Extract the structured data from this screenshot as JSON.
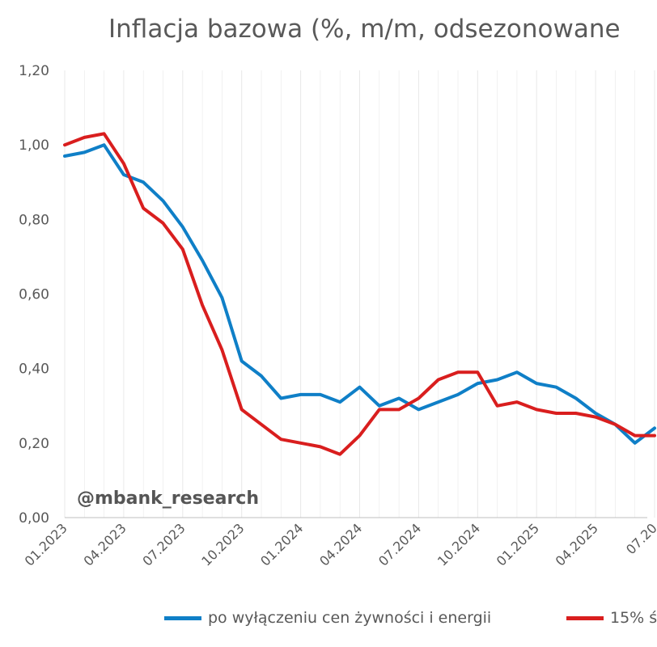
{
  "title": "Inflacja bazowa (%, m/m, odsezonowane",
  "watermark": "@mbank_research",
  "colors": {
    "series1": "#0f7fc7",
    "series2": "#d91e1e",
    "grid": "#e8e8e8",
    "text": "#595959"
  },
  "chart_data": {
    "type": "line",
    "title": "Inflacja bazowa (%, m/m, odsezonowane",
    "ylim": [
      0,
      1.2
    ],
    "yticks": [
      "0,00",
      "0,20",
      "0,40",
      "0,60",
      "0,80",
      "1,00",
      "1,20"
    ],
    "xtick_labels": [
      "01.2023",
      "04.2023",
      "07.2023",
      "10.2023",
      "01.2024",
      "04.2024",
      "07.2024",
      "10.2024",
      "01.2025",
      "04.2025",
      "07.20"
    ],
    "x": [
      "01.2023",
      "02.2023",
      "03.2023",
      "04.2023",
      "05.2023",
      "06.2023",
      "07.2023",
      "08.2023",
      "09.2023",
      "10.2023",
      "11.2023",
      "12.2023",
      "01.2024",
      "02.2024",
      "03.2024",
      "04.2024",
      "05.2024",
      "06.2024",
      "07.2024",
      "08.2024",
      "09.2024",
      "10.2024",
      "11.2024",
      "12.2024",
      "01.2025",
      "02.2025",
      "03.2025",
      "04.2025",
      "05.2025",
      "06.2025",
      "07.2025"
    ],
    "grid": "vertical",
    "legend_position": "bottom",
    "series": [
      {
        "name": "po wyłączeniu cen żywności i energii",
        "color": "#0f7fc7",
        "values": [
          0.97,
          0.98,
          1.0,
          0.92,
          0.9,
          0.85,
          0.78,
          0.69,
          0.59,
          0.42,
          0.38,
          0.32,
          0.33,
          0.33,
          0.31,
          0.35,
          0.3,
          0.32,
          0.29,
          0.31,
          0.33,
          0.36,
          0.37,
          0.39,
          0.36,
          0.35,
          0.32,
          0.28,
          0.25,
          0.2,
          0.24
        ]
      },
      {
        "name": "15% ś",
        "color": "#d91e1e",
        "values": [
          1.0,
          1.02,
          1.03,
          0.95,
          0.83,
          0.79,
          0.72,
          0.57,
          0.45,
          0.29,
          0.25,
          0.21,
          0.2,
          0.19,
          0.17,
          0.22,
          0.29,
          0.29,
          0.32,
          0.37,
          0.39,
          0.39,
          0.3,
          0.31,
          0.29,
          0.28,
          0.28,
          0.27,
          0.25,
          0.22,
          0.22
        ]
      }
    ]
  }
}
